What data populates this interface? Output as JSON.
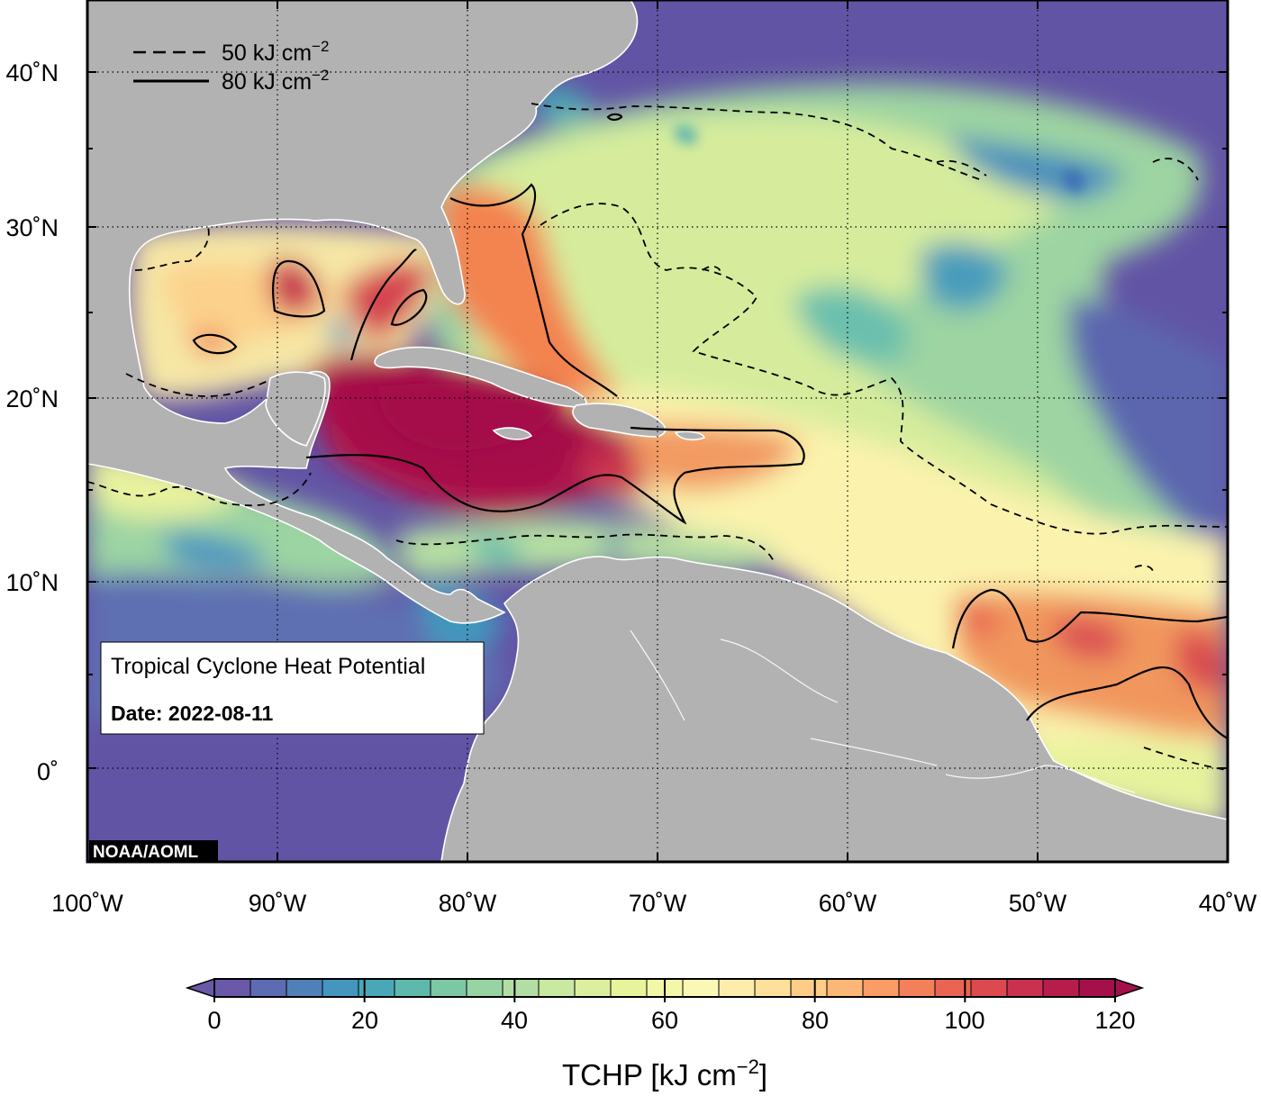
{
  "map": {
    "legend": {
      "dashed_label": "50 kJ cm",
      "solid_label": "80 kJ cm",
      "exponent": "−2"
    },
    "info_box": {
      "title": "Tropical Cyclone Heat Potential",
      "date": "Date: 2022-08-11"
    },
    "credit": "NOAA/AOML",
    "lat_ticks": [
      "40˚N",
      "30˚N",
      "20˚N",
      "10˚N",
      "0˚"
    ],
    "lon_ticks": [
      "100˚W",
      "90˚W",
      "80˚W",
      "70˚W",
      "60˚W",
      "50˚W",
      "40˚W"
    ],
    "colors": {
      "land": "#b2b2b2",
      "coast": "#ffffff",
      "cold": "#6254a5",
      "hot": "#a5104b"
    }
  },
  "colorbar": {
    "title": "TCHP [kJ cm",
    "title_exponent": "−2",
    "title_close": "]",
    "tick_labels": [
      "0",
      "20",
      "40",
      "60",
      "80",
      "100",
      "120"
    ],
    "colors": [
      "#6959a8",
      "#5c6bb2",
      "#4f80b8",
      "#4496be",
      "#49a8b8",
      "#5eb9ac",
      "#7cc8a5",
      "#98d3a3",
      "#b2dea3",
      "#c9e8a0",
      "#dbef9f",
      "#e8f49c",
      "#f3f8a8",
      "#fbf8b5",
      "#fdedab",
      "#fde09a",
      "#fdcd87",
      "#fcb676",
      "#f99c65",
      "#f4805a",
      "#ea6453",
      "#dc4a50",
      "#c9324f",
      "#b61d4d",
      "#a5104b"
    ]
  }
}
